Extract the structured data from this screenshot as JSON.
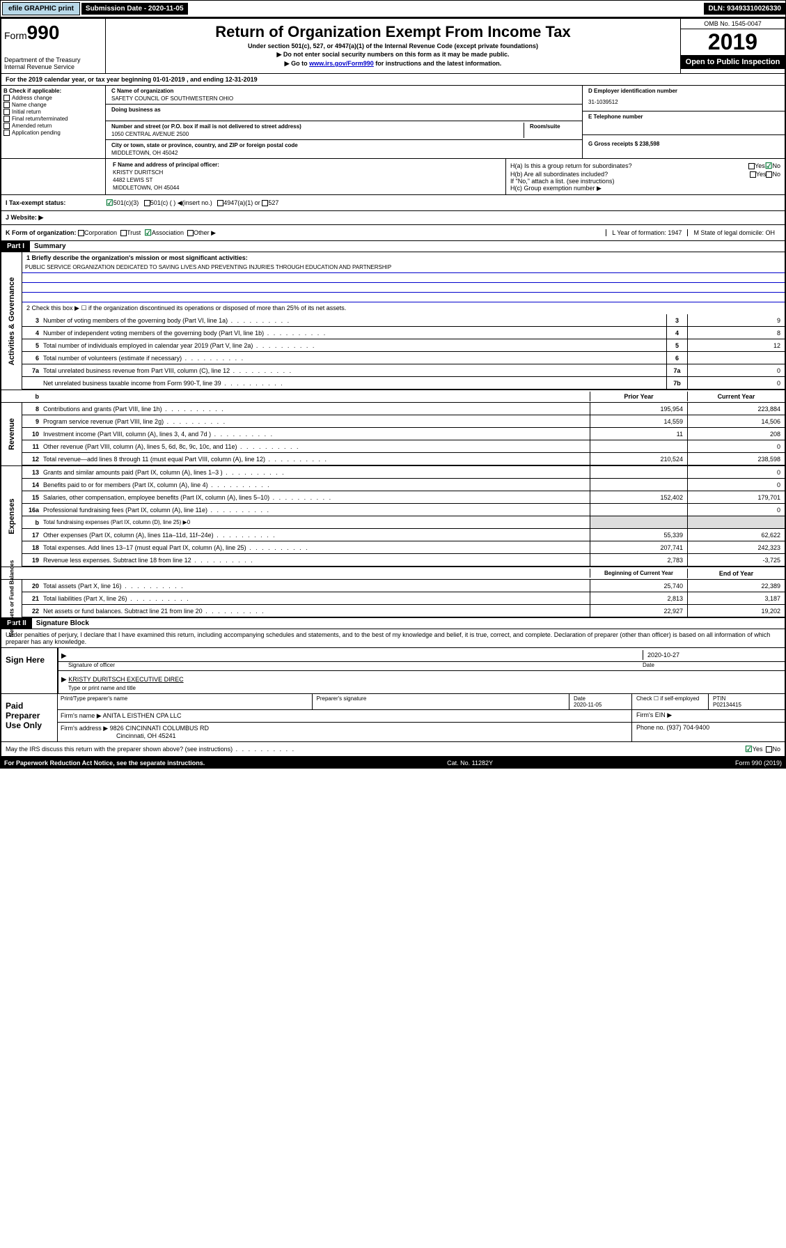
{
  "topbar": {
    "efile": "efile GRAPHIC print",
    "subdate_label": "Submission Date - 2020-11-05",
    "dln_label": "DLN: 93493310026330"
  },
  "header": {
    "form_label": "Form",
    "form_num": "990",
    "dept": "Department of the Treasury\nInternal Revenue Service",
    "title": "Return of Organization Exempt From Income Tax",
    "sub1": "Under section 501(c), 527, or 4947(a)(1) of the Internal Revenue Code (except private foundations)",
    "sub2": "▶ Do not enter social security numbers on this form as it may be made public.",
    "sub3_pre": "▶ Go to ",
    "sub3_link": "www.irs.gov/Form990",
    "sub3_post": " for instructions and the latest information.",
    "omb": "OMB No. 1545-0047",
    "year": "2019",
    "open": "Open to Public Inspection"
  },
  "taxyear": "For the 2019 calendar year, or tax year beginning 01-01-2019   , and ending 12-31-2019",
  "boxB": {
    "hdr": "B Check if applicable:",
    "items": [
      "Address change",
      "Name change",
      "Initial return",
      "Final return/terminated",
      "Amended return",
      "Application pending"
    ]
  },
  "boxC": {
    "name_label": "C Name of organization",
    "name": "SAFETY COUNCIL OF SOUTHWESTERN OHIO",
    "dba_label": "Doing business as",
    "addr_label": "Number and street (or P.O. box if mail is not delivered to street address)",
    "room_label": "Room/suite",
    "addr": "1050 CENTRAL AVENUE 2500",
    "city_label": "City or town, state or province, country, and ZIP or foreign postal code",
    "city": "MIDDLETOWN, OH  45042"
  },
  "boxD": {
    "label": "D Employer identification number",
    "val": "31-1039512"
  },
  "boxE": {
    "label": "E Telephone number"
  },
  "boxG": {
    "label": "G Gross receipts $ 238,598"
  },
  "boxF": {
    "label": "F  Name and address of principal officer:",
    "name": "KRISTY DURITSCH",
    "addr1": "4482 LEWIS ST",
    "addr2": "MIDDLETOWN, OH  45044"
  },
  "boxH": {
    "a": "H(a)  Is this a group return for subordinates?",
    "b": "H(b)  Are all subordinates included?",
    "note": "If \"No,\" attach a list. (see instructions)",
    "c": "H(c)  Group exemption number ▶",
    "yes": "Yes",
    "no": "No"
  },
  "boxI": {
    "label": "I     Tax-exempt status:",
    "opts": [
      "501(c)(3)",
      "501(c) (  ) ◀(insert no.)",
      "4947(a)(1) or",
      "527"
    ]
  },
  "boxJ": {
    "label": "J     Website: ▶"
  },
  "boxK": {
    "label": "K Form of organization:",
    "opts": [
      "Corporation",
      "Trust",
      "Association",
      "Other ▶"
    ]
  },
  "boxL": {
    "label": "L Year of formation: 1947"
  },
  "boxM": {
    "label": "M State of legal domicile: OH"
  },
  "part1": {
    "hdr": "Part I",
    "title": "Summary",
    "l1_label": "1  Briefly describe the organization's mission or most significant activities:",
    "l1_text": "PUBLIC SERVICE ORGANIZATION DEDICATED TO SAVING LIVES AND PREVENTING INJURIES THROUGH EDUCATION AND PARTNERSHIP",
    "l2": "2   Check this box ▶ ☐  if the organization discontinued its operations or disposed of more than 25% of its net assets.",
    "lines_single": [
      {
        "n": "3",
        "t": "Number of voting members of the governing body (Part VI, line 1a)",
        "box": "3",
        "v": "9"
      },
      {
        "n": "4",
        "t": "Number of independent voting members of the governing body (Part VI, line 1b)",
        "box": "4",
        "v": "8"
      },
      {
        "n": "5",
        "t": "Total number of individuals employed in calendar year 2019 (Part V, line 2a)",
        "box": "5",
        "v": "12"
      },
      {
        "n": "6",
        "t": "Total number of volunteers (estimate if necessary)",
        "box": "6",
        "v": ""
      },
      {
        "n": "7a",
        "t": "Total unrelated business revenue from Part VIII, column (C), line 12",
        "box": "7a",
        "v": "0"
      },
      {
        "n": "",
        "t": "Net unrelated business taxable income from Form 990-T, line 39",
        "box": "7b",
        "v": "0"
      }
    ],
    "col_prior": "Prior Year",
    "col_current": "Current Year",
    "revenue": [
      {
        "n": "8",
        "t": "Contributions and grants (Part VIII, line 1h)",
        "p": "195,954",
        "c": "223,884"
      },
      {
        "n": "9",
        "t": "Program service revenue (Part VIII, line 2g)",
        "p": "14,559",
        "c": "14,506"
      },
      {
        "n": "10",
        "t": "Investment income (Part VIII, column (A), lines 3, 4, and 7d )",
        "p": "11",
        "c": "208"
      },
      {
        "n": "11",
        "t": "Other revenue (Part VIII, column (A), lines 5, 6d, 8c, 9c, 10c, and 11e)",
        "p": "",
        "c": "0"
      },
      {
        "n": "12",
        "t": "Total revenue—add lines 8 through 11 (must equal Part VIII, column (A), line 12)",
        "p": "210,524",
        "c": "238,598"
      }
    ],
    "expenses": [
      {
        "n": "13",
        "t": "Grants and similar amounts paid (Part IX, column (A), lines 1–3 )",
        "p": "",
        "c": "0"
      },
      {
        "n": "14",
        "t": "Benefits paid to or for members (Part IX, column (A), line 4)",
        "p": "",
        "c": "0"
      },
      {
        "n": "15",
        "t": "Salaries, other compensation, employee benefits (Part IX, column (A), lines 5–10)",
        "p": "152,402",
        "c": "179,701"
      },
      {
        "n": "16a",
        "t": "Professional fundraising fees (Part IX, column (A), line 11e)",
        "p": "",
        "c": "0"
      },
      {
        "n": "b",
        "t": "Total fundraising expenses (Part IX, column (D), line 25) ▶0",
        "p": null,
        "c": null
      },
      {
        "n": "17",
        "t": "Other expenses (Part IX, column (A), lines 11a–11d, 11f–24e)",
        "p": "55,339",
        "c": "62,622"
      },
      {
        "n": "18",
        "t": "Total expenses. Add lines 13–17 (must equal Part IX, column (A), line 25)",
        "p": "207,741",
        "c": "242,323"
      },
      {
        "n": "19",
        "t": "Revenue less expenses. Subtract line 18 from line 12",
        "p": "2,783",
        "c": "-3,725"
      }
    ],
    "col_begin": "Beginning of Current Year",
    "col_end": "End of Year",
    "netassets": [
      {
        "n": "20",
        "t": "Total assets (Part X, line 16)",
        "p": "25,740",
        "c": "22,389"
      },
      {
        "n": "21",
        "t": "Total liabilities (Part X, line 26)",
        "p": "2,813",
        "c": "3,187"
      },
      {
        "n": "22",
        "t": "Net assets or fund balances. Subtract line 21 from line 20",
        "p": "22,927",
        "c": "19,202"
      }
    ],
    "vside_act": "Activities & Governance",
    "vside_rev": "Revenue",
    "vside_exp": "Expenses",
    "vside_net": "Net Assets or Fund Balances"
  },
  "part2": {
    "hdr": "Part II",
    "title": "Signature Block",
    "perjury": "Under penalties of perjury, I declare that I have examined this return, including accompanying schedules and statements, and to the best of my knowledge and belief, it is true, correct, and complete. Declaration of preparer (other than officer) is based on all information of which preparer has any knowledge.",
    "sign_here": "Sign Here",
    "sig_officer": "Signature of officer",
    "sig_date": "2020-10-27",
    "sig_date_label": "Date",
    "sig_name": "KRISTY DURITSCH  EXECUTIVE DIREC",
    "sig_name_label": "Type or print name and title",
    "paid": "Paid Preparer Use Only",
    "prep_name_label": "Print/Type preparer's name",
    "prep_sig_label": "Preparer's signature",
    "prep_date_label": "Date",
    "prep_date": "2020-11-05",
    "prep_check": "Check ☐ if self-employed",
    "ptin_label": "PTIN",
    "ptin": "P02134415",
    "firm_name_label": "Firm's name    ▶",
    "firm_name": "ANITA L EISTHEN CPA LLC",
    "firm_ein_label": "Firm's EIN ▶",
    "firm_addr_label": "Firm's address ▶",
    "firm_addr": "9826 CINCINNATI COLUMBUS RD",
    "firm_city": "Cincinnati, OH  45241",
    "phone_label": "Phone no. (937) 704-9400",
    "discuss": "May the IRS discuss this return with the preparer shown above? (see instructions)",
    "yes": "Yes",
    "no": "No"
  },
  "footer": {
    "pra": "For Paperwork Reduction Act Notice, see the separate instructions.",
    "cat": "Cat. No. 11282Y",
    "form": "Form 990 (2019)"
  }
}
